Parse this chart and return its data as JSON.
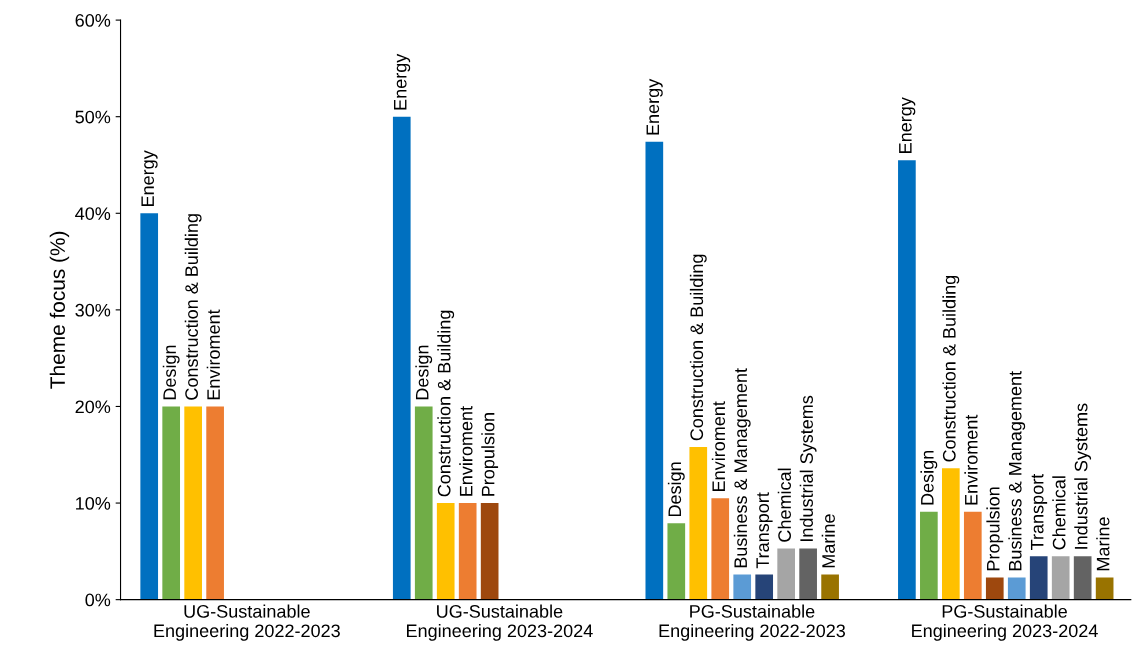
{
  "chart_data": {
    "type": "bar",
    "ylabel": "Theme focus (%)",
    "categories": [
      "UG-Sustainable\nEngineering 2022-2023",
      "UG-Sustainable\nEngineering 2023-2024",
      "PG-Sustainable\nEngineering 2022-2023",
      "PG-Sustainable\nEngineering 2023-2024"
    ],
    "series": [
      {
        "name": "Energy",
        "color": "#0070c0",
        "values": [
          40,
          50,
          47.4,
          45.5
        ]
      },
      {
        "name": "Design",
        "color": "#70ad47",
        "values": [
          20,
          20,
          7.9,
          9.1
        ]
      },
      {
        "name": "Construction & Building",
        "color": "#ffc000",
        "values": [
          20,
          10,
          15.8,
          13.6
        ]
      },
      {
        "name": "Enviroment",
        "color": "#ed7d31",
        "values": [
          20,
          10,
          10.5,
          9.1
        ]
      },
      {
        "name": "Propulsion",
        "color": "#9e480e",
        "values": [
          null,
          10,
          null,
          2.3
        ]
      },
      {
        "name": "Business & Management",
        "color": "#5b9bd5",
        "values": [
          null,
          null,
          2.6,
          2.3
        ]
      },
      {
        "name": "Transport",
        "color": "#264478",
        "values": [
          null,
          null,
          2.6,
          4.5
        ]
      },
      {
        "name": "Chemical",
        "color": "#a5a5a5",
        "values": [
          null,
          null,
          5.3,
          4.5
        ]
      },
      {
        "name": "Industrial Systems",
        "color": "#636363",
        "values": [
          null,
          null,
          5.3,
          4.5
        ]
      },
      {
        "name": "Marine",
        "color": "#997300",
        "values": [
          null,
          null,
          2.6,
          2.3
        ]
      }
    ],
    "ylim": [
      0,
      60
    ],
    "yticks": [
      {
        "value": 0,
        "label": "0%"
      },
      {
        "value": 10,
        "label": "10%"
      },
      {
        "value": 20,
        "label": "20%"
      },
      {
        "value": 30,
        "label": "30%"
      },
      {
        "value": 40,
        "label": "40%"
      },
      {
        "value": 50,
        "label": "50%"
      },
      {
        "value": 60,
        "label": "60%"
      }
    ],
    "grid": false,
    "legend": false
  }
}
